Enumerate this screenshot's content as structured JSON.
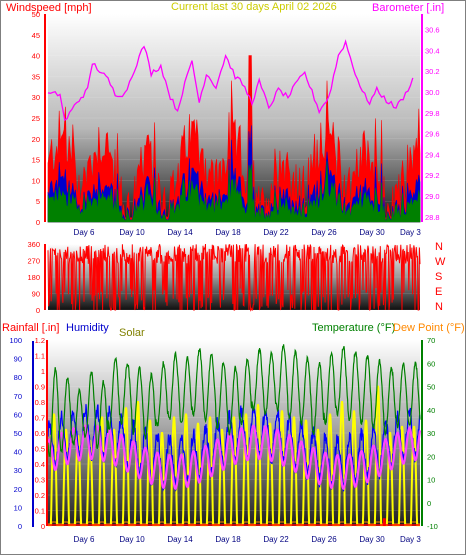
{
  "header": {
    "windspeed_label": "Windspeed [mph]",
    "subtitle": "Current last 30 days April 02 2026",
    "barometer_label": "Barometer [.in]"
  },
  "lower_header": {
    "rainfall_label": "Rainfall [.in]",
    "humidity_label": "Humidity",
    "solar_label": "Solar",
    "temperature_label": "Temperature (°F)",
    "dewpoint_label": "Dew Point (°F)"
  },
  "direction_labels": [
    "N",
    "W",
    "S",
    "E",
    "N"
  ],
  "day_labels": [
    "Day 6",
    "Day 10",
    "Day 14",
    "Day 18",
    "Day 22",
    "Day 26",
    "Day 30",
    "Day 3"
  ],
  "colors": {
    "windspeed": "#ff0000",
    "gust": "#ff0000",
    "average": "#0000cc",
    "green": "#008000",
    "barometer": "#ff00ff",
    "direction": "#ff0000",
    "solar": "#ffff00",
    "temperature": "#008000",
    "dewpoint": "#ff8800",
    "humidity": "#0000ff",
    "rainfall": "#ff0000",
    "title": "#cccc00",
    "axis_blue": "#0000cc"
  },
  "chart_data": [
    {
      "type": "line",
      "name": "wind_barometer",
      "x_ticks": [
        "Day 6",
        "Day 10",
        "Day 14",
        "Day 18",
        "Day 22",
        "Day 26",
        "Day 30",
        "Day 3"
      ],
      "y_left": {
        "label": "Windspeed [mph]",
        "ticks": [
          0,
          5,
          10,
          15,
          20,
          25,
          30,
          35,
          40,
          45,
          50
        ],
        "range": [
          0,
          50
        ]
      },
      "y_right": {
        "label": "Barometer [.in]",
        "ticks": [
          28.8,
          29,
          29.2,
          29.4,
          29.6,
          29.8,
          30,
          30.2,
          30.4,
          30.6
        ],
        "range": [
          28.75,
          30.75
        ]
      },
      "barometer_points": [
        [
          0,
          29.98
        ],
        [
          1,
          29.98
        ],
        [
          1.4,
          29.72
        ],
        [
          2.4,
          29.9
        ],
        [
          3.3,
          30.02
        ],
        [
          3.7,
          30.28
        ],
        [
          4.5,
          30.18
        ],
        [
          5.0,
          30.12
        ],
        [
          5.6,
          29.98
        ],
        [
          6.4,
          29.98
        ],
        [
          7.2,
          30.22
        ],
        [
          8.0,
          30.45
        ],
        [
          8.6,
          30.18
        ],
        [
          9.4,
          30.25
        ],
        [
          10.2,
          29.95
        ],
        [
          10.8,
          29.82
        ],
        [
          11.2,
          30.0
        ],
        [
          12.0,
          30.3
        ],
        [
          12.6,
          29.9
        ],
        [
          13.2,
          30.18
        ],
        [
          14.0,
          30.05
        ],
        [
          14.8,
          30.35
        ],
        [
          15.6,
          30.15
        ],
        [
          16.2,
          30.08
        ],
        [
          17.0,
          29.9
        ],
        [
          17.6,
          30.1
        ],
        [
          18.4,
          29.85
        ],
        [
          19.2,
          30.02
        ],
        [
          20.0,
          29.95
        ],
        [
          20.8,
          30.1
        ],
        [
          21.4,
          30.18
        ],
        [
          22.0,
          30.0
        ],
        [
          22.6,
          29.82
        ],
        [
          23.4,
          29.95
        ],
        [
          24.2,
          30.35
        ],
        [
          24.8,
          30.48
        ],
        [
          25.4,
          30.25
        ],
        [
          26.2,
          30.0
        ],
        [
          26.8,
          29.9
        ],
        [
          27.4,
          30.02
        ],
        [
          28.2,
          29.92
        ],
        [
          29.0,
          29.85
        ],
        [
          29.8,
          29.98
        ],
        [
          30.6,
          30.18
        ]
      ],
      "gust_peak": 40
    },
    {
      "type": "line",
      "name": "wind_direction",
      "y_ticks": [
        0,
        90,
        180,
        270,
        360
      ],
      "y_range": [
        0,
        360
      ],
      "direction_labels": [
        "N",
        "W",
        "S",
        "E",
        "N"
      ]
    },
    {
      "type": "line",
      "name": "rain_humidity_solar_temp",
      "y_left_rain": {
        "label": "Rainfall [.in]",
        "ticks": [
          0,
          0.1,
          0.2,
          0.3,
          0.4,
          0.5,
          0.6,
          0.7,
          0.8,
          0.9,
          1,
          1.1,
          1.2
        ],
        "range": [
          0,
          1.2
        ]
      },
      "y_left_humidity": {
        "label": "Humidity",
        "ticks": [
          0,
          10,
          20,
          30,
          40,
          50,
          60,
          70,
          80,
          90,
          100
        ],
        "range": [
          0,
          100
        ]
      },
      "y_right_temp": {
        "label": "Temperature (°F)",
        "ticks": [
          -10,
          0,
          10,
          20,
          30,
          40,
          50,
          60,
          70
        ],
        "range": [
          -10,
          70
        ]
      },
      "dewpoint_label": "Dew Point (°F)",
      "temp_daily_max": [
        58,
        54,
        48,
        56,
        52,
        62,
        60,
        58,
        55,
        60,
        64,
        62,
        66,
        64,
        60,
        58,
        62,
        66,
        64,
        68,
        65,
        62,
        60,
        64,
        67,
        65,
        63,
        61,
        58,
        60
      ],
      "temp_daily_min": [
        20,
        22,
        25,
        28,
        24,
        32,
        34,
        30,
        28,
        33,
        36,
        34,
        38,
        36,
        32,
        30,
        34,
        40,
        38,
        40,
        36,
        34,
        30,
        34,
        38,
        36,
        34,
        32,
        30,
        33
      ],
      "solar_daily_peak": [
        0.72,
        0.62,
        0.58,
        0.55,
        0.7,
        0.62,
        0.76,
        0.8,
        0.68,
        0.6,
        0.7,
        0.72,
        0.66,
        0.7,
        0.62,
        0.7,
        0.72,
        0.78,
        0.66,
        0.74,
        0.7,
        0.68,
        0.62,
        0.72,
        0.8,
        0.74,
        0.68,
        0.9,
        0.6,
        0.64
      ]
    }
  ]
}
